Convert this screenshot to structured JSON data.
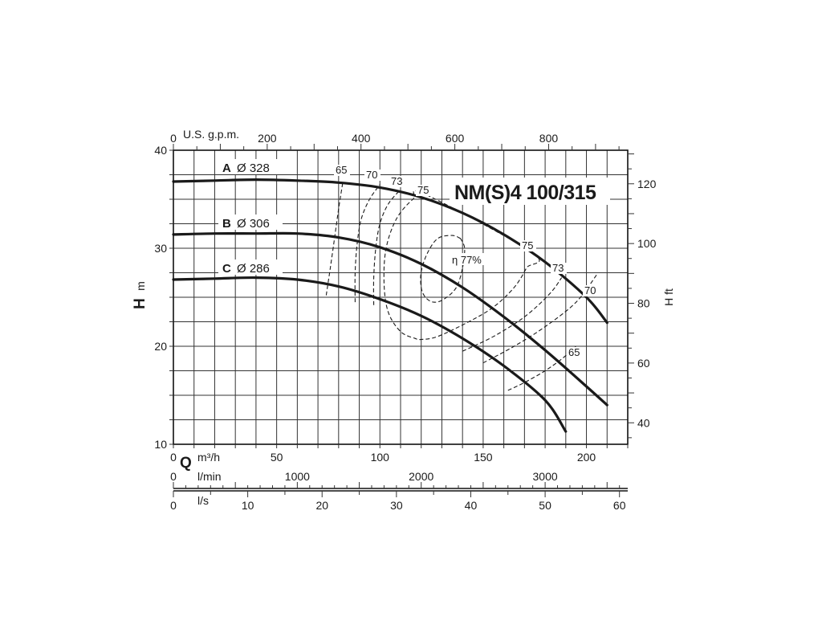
{
  "chart_data": {
    "type": "line",
    "title": "NM(S)4 100/315",
    "grid": true,
    "x_axis": {
      "quantity": "Q",
      "unit": "m³/h",
      "range": [
        0,
        220
      ],
      "ticks": [
        0,
        50,
        100,
        150,
        200
      ]
    },
    "x_axis_top": {
      "unit": "U.S. g.p.m.",
      "ticks": [
        0,
        200,
        400,
        600,
        800
      ]
    },
    "x_axis_lmin": {
      "unit": "l/min",
      "ticks": [
        0,
        1000,
        2000,
        3000
      ]
    },
    "x_axis_ls": {
      "unit": "l/s",
      "ticks": [
        0,
        10,
        20,
        30,
        40,
        50,
        60
      ]
    },
    "y_axis": {
      "quantity": "H",
      "unit": "m",
      "range": [
        10,
        40
      ],
      "ticks": [
        10,
        20,
        30,
        40
      ]
    },
    "y_axis_right": {
      "unit": "H ft",
      "ticks": [
        40,
        60,
        80,
        100,
        120
      ]
    },
    "series": [
      {
        "name": "A",
        "diameter_label": "Ø 328",
        "x": [
          0,
          20,
          40,
          60,
          80,
          100,
          120,
          140,
          160,
          180,
          200,
          210
        ],
        "y": [
          36.8,
          36.9,
          37.0,
          36.9,
          36.7,
          36.2,
          35.2,
          33.6,
          31.4,
          28.6,
          25.0,
          22.4
        ]
      },
      {
        "name": "B",
        "diameter_label": "Ø 306",
        "x": [
          0,
          20,
          40,
          60,
          80,
          100,
          120,
          140,
          160,
          180,
          200,
          210
        ],
        "y": [
          31.4,
          31.5,
          31.5,
          31.5,
          31.1,
          30.1,
          28.4,
          26.0,
          23.0,
          19.6,
          15.9,
          14.0
        ]
      },
      {
        "name": "C",
        "diameter_label": "Ø 286",
        "x": [
          0,
          20,
          40,
          60,
          80,
          100,
          120,
          140,
          160,
          180,
          190
        ],
        "y": [
          26.8,
          26.9,
          27.0,
          26.8,
          26.1,
          24.8,
          23.1,
          20.8,
          18.0,
          14.5,
          11.3
        ]
      }
    ],
    "efficiency_curves": [
      {
        "label": "65",
        "branches": [
          {
            "x": [
              74,
              76,
              78,
              80,
              82
            ],
            "y": [
              25.2,
              28.0,
              31.0,
              34.0,
              36.7
            ]
          },
          {
            "x": [
              162,
              170,
              180,
              188,
              195
            ],
            "y": [
              15.5,
              16.3,
              17.5,
              18.7,
              20.0
            ]
          }
        ]
      },
      {
        "label": "70",
        "branches": [
          {
            "x": [
              88,
              88,
              89,
              91,
              95,
              100
            ],
            "y": [
              24.5,
              27.5,
              30.5,
              33.0,
              35.0,
              36.5
            ]
          },
          {
            "x": [
              150,
              165,
              180,
              195,
              205
            ],
            "y": [
              18.3,
              20.0,
              22.0,
              24.5,
              27.3
            ]
          }
        ]
      },
      {
        "label": "73",
        "branches": [
          {
            "x": [
              97,
              97,
              98,
              100,
              104,
              110
            ],
            "y": [
              24.2,
              27.0,
              30.0,
              32.5,
              34.5,
              36.0
            ]
          },
          {
            "x": [
              140,
              155,
              170,
              182,
              188
            ],
            "y": [
              19.5,
              21.0,
              23.0,
              25.3,
              27.0
            ]
          }
        ]
      },
      {
        "label": "75",
        "closed": true,
        "x": [
          122,
          116,
          108,
          103,
          102,
          104,
          110,
          117,
          120,
          128,
          143,
          155,
          165,
          171,
          174
        ],
        "y": [
          35.5,
          35.0,
          33.0,
          30.0,
          26.5,
          23.5,
          21.5,
          20.8,
          20.7,
          21.0,
          22.5,
          24.0,
          26.0,
          28.0,
          29.5
        ]
      },
      {
        "label": "η 77%",
        "closed": true,
        "x": [
          139,
          135,
          128,
          123,
          120,
          120,
          122,
          126,
          131,
          137,
          140,
          141,
          139
        ],
        "y": [
          31.0,
          31.3,
          31.0,
          29.5,
          27.6,
          26.0,
          25.0,
          24.5,
          24.8,
          26.0,
          28.0,
          30.0,
          31.0
        ]
      }
    ],
    "efficiency_labels": [
      "65",
      "70",
      "73",
      "75",
      "75",
      "73",
      "70",
      "65"
    ]
  }
}
